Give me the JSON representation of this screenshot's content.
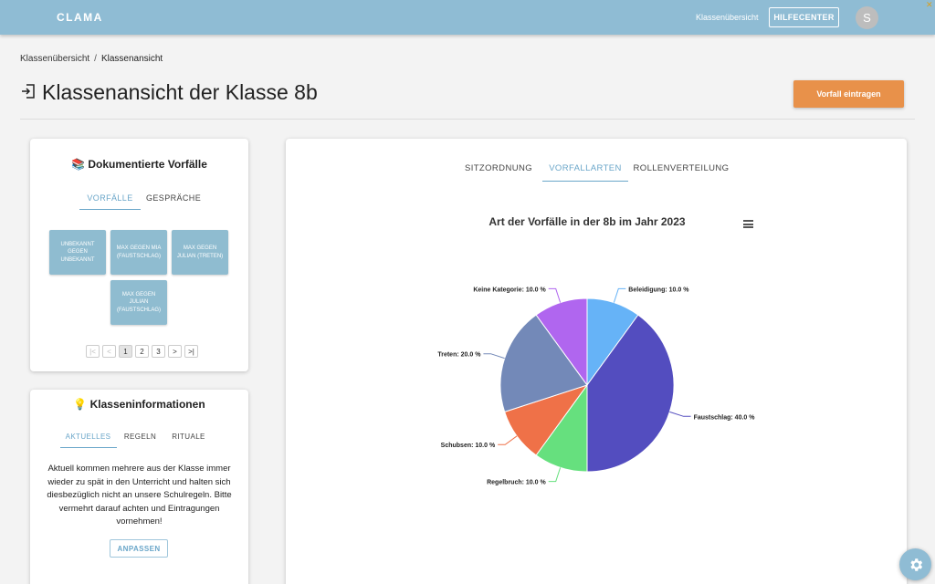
{
  "topbar": {
    "brand": "CLAMA",
    "nav_link": "Klassenübersicht",
    "help_button": "HILFECENTER",
    "avatar_initial": "S"
  },
  "breadcrumb": {
    "parent": "Klassenübersicht",
    "separator": "/",
    "current": "Klassenansicht"
  },
  "page": {
    "title": "Klassenansicht der Klasse 8b",
    "report_button": "Vorfall eintragen"
  },
  "incidents": {
    "title": "📚 Dokumentierte Vorfälle",
    "tabs": [
      "VORFÄLLE",
      "GESPRÄCHE"
    ],
    "active_tab": 0,
    "tiles": [
      "UNBEKANNT GEGEN UNBEKANNT",
      "MAX GEGEN MIA (FAUSTSCHLAG)",
      "MAX GEGEN JULIAN (TRETEN)",
      "MAX GEGEN JULIAN (FAUSTSCHLAG)"
    ],
    "pagination": {
      "first": "|<",
      "prev": "<",
      "pages": [
        "1",
        "2",
        "3"
      ],
      "current_page": "1",
      "next": ">",
      "last": ">|"
    }
  },
  "class_info": {
    "title": "💡 Klasseninformationen",
    "tabs": [
      "AKTUELLES",
      "REGELN",
      "RITUALE"
    ],
    "active_tab": 0,
    "text": "Aktuell kommen mehrere aus der Klasse immer wieder zu spät in den Unterricht und halten sich diesbezüglich nicht an unsere Schulregeln. Bitte vermehrt darauf achten und Eintragungen vornehmen!",
    "adjust_button": "ANPASSEN"
  },
  "chart_panel": {
    "tabs": [
      "SITZORDNUNG",
      "VORFALLARTEN",
      "ROLLENVERTEILUNG"
    ],
    "active_tab": 1
  },
  "chart_data": {
    "type": "pie",
    "title": "Art der Vorfälle in der 8b im Jahr 2023",
    "slices": [
      {
        "label": "Beleidigung: 10.0 %",
        "value": 10.0,
        "color": "#66b3f7"
      },
      {
        "label": "Faustschlag: 40.0 %",
        "value": 40.0,
        "color": "#534dbf"
      },
      {
        "label": "Regelbruch: 10.0 %",
        "value": 10.0,
        "color": "#66e07e"
      },
      {
        "label": "Schubsen: 10.0 %",
        "value": 10.0,
        "color": "#ef7148"
      },
      {
        "label": "Treten: 20.0 %",
        "value": 20.0,
        "color": "#7389b8"
      },
      {
        "label": "Keine Kategorie: 10.0 %",
        "value": 10.0,
        "color": "#b066ef"
      }
    ],
    "legend": "none"
  },
  "icons": {
    "title_icon": "login-icon",
    "chart_menu": "hamburger-menu-icon",
    "fab": "gear-icon"
  }
}
